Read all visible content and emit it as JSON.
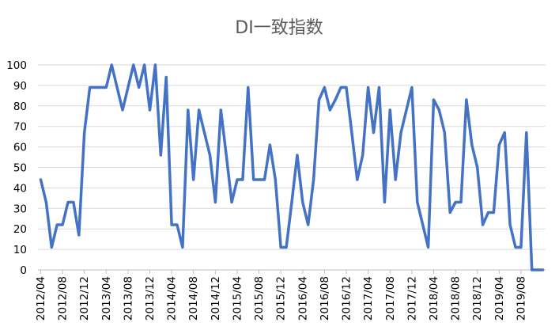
{
  "chart_data": {
    "type": "line",
    "title": "DI一致指数",
    "xlabel": "",
    "ylabel": "",
    "ylim": [
      0,
      100
    ],
    "yticks": [
      0,
      10,
      20,
      30,
      40,
      50,
      60,
      70,
      80,
      90,
      100
    ],
    "grid": true,
    "legend": "none",
    "x": [
      "2012/04",
      "2012/05",
      "2012/06",
      "2012/07",
      "2012/08",
      "2012/09",
      "2012/10",
      "2012/11",
      "2012/12",
      "2013/01",
      "2013/02",
      "2013/03",
      "2013/04",
      "2013/05",
      "2013/06",
      "2013/07",
      "2013/08",
      "2013/09",
      "2013/10",
      "2013/11",
      "2013/12",
      "2014/01",
      "2014/02",
      "2014/03",
      "2014/04",
      "2014/05",
      "2014/06",
      "2014/07",
      "2014/08",
      "2014/09",
      "2014/10",
      "2014/11",
      "2014/12",
      "2015/01",
      "2015/02",
      "2015/03",
      "2015/04",
      "2015/05",
      "2015/06",
      "2015/07",
      "2015/08",
      "2015/09",
      "2015/10",
      "2015/11",
      "2015/12",
      "2016/01",
      "2016/02",
      "2016/03",
      "2016/04",
      "2016/05",
      "2016/06",
      "2016/07",
      "2016/08",
      "2016/09",
      "2016/10",
      "2016/11",
      "2016/12",
      "2017/01",
      "2017/02",
      "2017/03",
      "2017/04",
      "2017/05",
      "2017/06",
      "2017/07",
      "2017/08",
      "2017/09",
      "2017/10",
      "2017/11",
      "2017/12",
      "2018/01",
      "2018/02",
      "2018/03",
      "2018/04",
      "2018/05",
      "2018/06",
      "2018/07",
      "2018/08",
      "2018/09",
      "2018/10",
      "2018/11",
      "2018/12",
      "2019/01",
      "2019/02",
      "2019/03",
      "2019/04",
      "2019/05",
      "2019/06",
      "2019/07",
      "2019/08",
      "2019/09",
      "2019/10",
      "2019/11",
      "2019/12"
    ],
    "xtick_labels": [
      "2012/04",
      "2012/08",
      "2012/12",
      "2013/04",
      "2013/08",
      "2013/12",
      "2014/04",
      "2014/08",
      "2014/12",
      "2015/04",
      "2015/08",
      "2015/12",
      "2016/04",
      "2016/08",
      "2016/12",
      "2017/04",
      "2017/08",
      "2017/12",
      "2018/04",
      "2018/08",
      "2018/12",
      "2019/04",
      "2019/08"
    ],
    "series": [
      {
        "color": "#4472c4",
        "values": [
          44,
          33,
          11,
          22,
          22,
          33,
          33,
          17,
          67,
          89,
          89,
          89,
          89,
          100,
          89,
          78,
          89,
          100,
          89,
          100,
          78,
          100,
          56,
          94,
          22,
          22,
          11,
          78,
          44,
          78,
          67,
          56,
          33,
          78,
          56,
          33,
          44,
          44,
          89,
          44,
          44,
          44,
          61,
          44,
          11,
          11,
          33,
          56,
          33,
          22,
          44,
          83,
          89,
          78,
          83,
          89,
          89,
          67,
          44,
          56,
          89,
          67,
          89,
          33,
          78,
          44,
          67,
          78,
          89,
          33,
          22,
          11,
          83,
          78,
          67,
          28,
          33,
          33,
          83,
          61,
          50,
          22,
          28,
          28,
          61,
          67,
          22,
          11,
          11,
          67,
          0,
          0,
          0
        ]
      }
    ]
  }
}
